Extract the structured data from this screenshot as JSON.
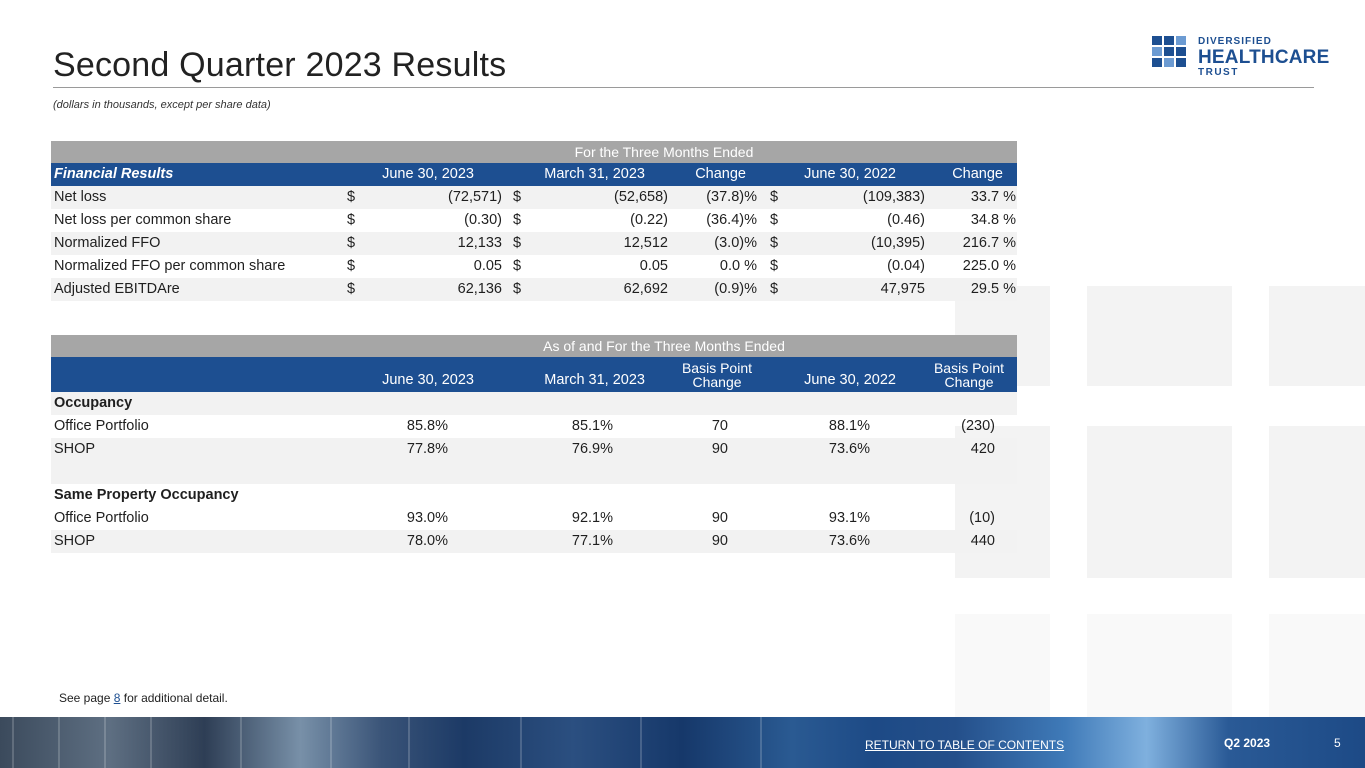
{
  "title": "Second Quarter 2023 Results",
  "subtitle": "(dollars in thousands, except per share data)",
  "logo": {
    "line1": "DIVERSIFIED",
    "line2": "HEALTHCARE",
    "line3": "TRUST",
    "color": "#1d4f91"
  },
  "financial": {
    "band": "For the Three Months Ended",
    "headers": {
      "label": "Financial Results",
      "c1": "June 30, 2023",
      "c2": "March 31, 2023",
      "c3": "Change",
      "c4": "June 30, 2022",
      "c5": "Change"
    },
    "rows": [
      {
        "label": "Net loss",
        "d1": "$",
        "v1": "(72,571)",
        "d2": "$",
        "v2": "(52,658)",
        "ch1": "(37.8)%",
        "d3": "$",
        "v3": "(109,383)",
        "ch2": "33.7 %"
      },
      {
        "label": "Net loss per common share",
        "d1": "$",
        "v1": "(0.30)",
        "d2": "$",
        "v2": "(0.22)",
        "ch1": "(36.4)%",
        "d3": "$",
        "v3": "(0.46)",
        "ch2": "34.8 %"
      },
      {
        "label": "Normalized FFO",
        "d1": "$",
        "v1": "12,133",
        "d2": "$",
        "v2": "12,512",
        "ch1": "(3.0)%",
        "d3": "$",
        "v3": "(10,395)",
        "ch2": "216.7 %"
      },
      {
        "label": "Normalized FFO per common share",
        "d1": "$",
        "v1": "0.05",
        "d2": "$",
        "v2": "0.05",
        "ch1": "0.0 %",
        "d3": "$",
        "v3": "(0.04)",
        "ch2": "225.0 %"
      },
      {
        "label": "Adjusted EBITDAre",
        "d1": "$",
        "v1": "62,136",
        "d2": "$",
        "v2": "62,692",
        "ch1": "(0.9)%",
        "d3": "$",
        "v3": "47,975",
        "ch2": "29.5 %"
      }
    ]
  },
  "occupancy": {
    "band": "As of and For the Three Months Ended",
    "headers": {
      "c1": "June 30, 2023",
      "c2": "March 31, 2023",
      "c3a": "Basis Point",
      "c3b": "Change",
      "c4": "June 30, 2022",
      "c5a": "Basis Point",
      "c5b": "Change"
    },
    "section1": "Occupancy",
    "rows1": [
      {
        "label": "Office Portfolio",
        "v1": "85.8%",
        "v2": "85.1%",
        "v3": "70",
        "v4": "88.1%",
        "v5": "(230)"
      },
      {
        "label": "SHOP",
        "v1": "77.8%",
        "v2": "76.9%",
        "v3": "90",
        "v4": "73.6%",
        "v5": "420"
      }
    ],
    "section2": "Same Property Occupancy",
    "rows2": [
      {
        "label": "Office Portfolio",
        "v1": "93.0%",
        "v2": "92.1%",
        "v3": "90",
        "v4": "93.1%",
        "v5": "(10)"
      },
      {
        "label": "SHOP",
        "v1": "78.0%",
        "v2": "77.1%",
        "v3": "90",
        "v4": "73.6%",
        "v5": "440"
      }
    ]
  },
  "note": {
    "before": "See page ",
    "link": "8",
    "after": " for additional detail."
  },
  "footer": {
    "return_link": "RETURN TO TABLE OF CONTENTS",
    "quarter": "Q2 2023",
    "page": "5"
  }
}
